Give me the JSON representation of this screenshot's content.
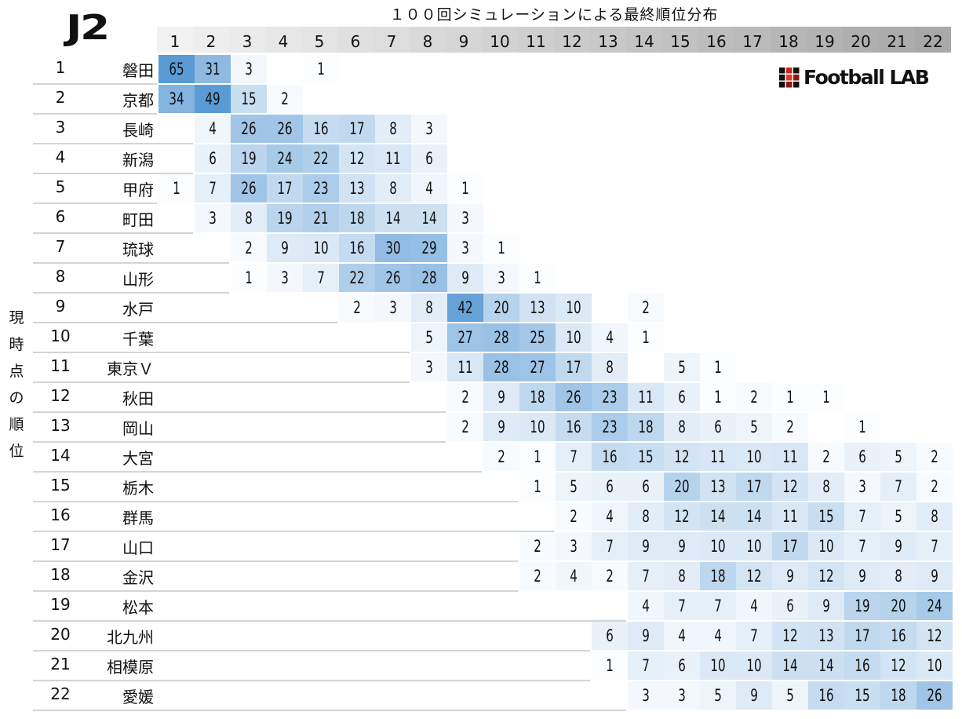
{
  "title": "１００回シミュレーションによる最終順位分布",
  "league_logo": "J2",
  "brand_logo": "Football LAB",
  "colors": {
    "high": "#5b9bd5",
    "low": "#ffffff",
    "logo_red": "#c8281e"
  },
  "chart_data": {
    "type": "heatmap",
    "title": "１００回シミュレーションによる最終順位分布",
    "ylabel": "現時点の順位",
    "x": [
      1,
      2,
      3,
      4,
      5,
      6,
      7,
      8,
      9,
      10,
      11,
      12,
      13,
      14,
      15,
      16,
      17,
      18,
      19,
      20,
      21,
      22
    ],
    "rows": [
      {
        "rank": 1,
        "team": "磐田",
        "values": {
          "1": 65,
          "2": 31,
          "3": 3,
          "5": 1
        }
      },
      {
        "rank": 2,
        "team": "京都",
        "values": {
          "1": 34,
          "2": 49,
          "3": 15,
          "4": 2
        }
      },
      {
        "rank": 3,
        "team": "長崎",
        "values": {
          "2": 4,
          "3": 26,
          "4": 26,
          "5": 16,
          "6": 17,
          "7": 8,
          "8": 3
        }
      },
      {
        "rank": 4,
        "team": "新潟",
        "values": {
          "2": 6,
          "3": 19,
          "4": 24,
          "5": 22,
          "6": 12,
          "7": 11,
          "8": 6
        }
      },
      {
        "rank": 5,
        "team": "甲府",
        "values": {
          "1": 1,
          "2": 7,
          "3": 26,
          "4": 17,
          "5": 23,
          "6": 13,
          "7": 8,
          "8": 4,
          "9": 1
        }
      },
      {
        "rank": 6,
        "team": "町田",
        "values": {
          "2": 3,
          "3": 8,
          "4": 19,
          "5": 21,
          "6": 18,
          "7": 14,
          "8": 14,
          "9": 3
        }
      },
      {
        "rank": 7,
        "team": "琉球",
        "values": {
          "3": 2,
          "4": 9,
          "5": 10,
          "6": 16,
          "7": 30,
          "8": 29,
          "9": 3,
          "10": 1
        }
      },
      {
        "rank": 8,
        "team": "山形",
        "values": {
          "3": 1,
          "4": 3,
          "5": 7,
          "6": 22,
          "7": 26,
          "8": 28,
          "9": 9,
          "10": 3,
          "11": 1
        }
      },
      {
        "rank": 9,
        "team": "水戸",
        "values": {
          "6": 2,
          "7": 3,
          "8": 8,
          "9": 42,
          "10": 20,
          "11": 13,
          "12": 10,
          "14": 2
        }
      },
      {
        "rank": 10,
        "team": "千葉",
        "values": {
          "8": 5,
          "9": 27,
          "10": 28,
          "11": 25,
          "12": 10,
          "13": 4,
          "14": 1
        }
      },
      {
        "rank": 11,
        "team": "東京Ｖ",
        "values": {
          "8": 3,
          "9": 11,
          "10": 28,
          "11": 27,
          "12": 17,
          "13": 8,
          "15": 5,
          "16": 1
        }
      },
      {
        "rank": 12,
        "team": "秋田",
        "values": {
          "9": 2,
          "10": 9,
          "11": 18,
          "12": 26,
          "13": 23,
          "14": 11,
          "15": 6,
          "16": 1,
          "17": 2,
          "18": 1,
          "19": 1
        }
      },
      {
        "rank": 13,
        "team": "岡山",
        "values": {
          "9": 2,
          "10": 9,
          "11": 10,
          "12": 16,
          "13": 23,
          "14": 18,
          "15": 8,
          "16": 6,
          "17": 5,
          "18": 2,
          "20": 1
        }
      },
      {
        "rank": 14,
        "team": "大宮",
        "values": {
          "10": 2,
          "11": 1,
          "12": 7,
          "13": 16,
          "14": 15,
          "15": 12,
          "16": 11,
          "17": 10,
          "18": 11,
          "19": 2,
          "20": 6,
          "21": 5,
          "22": 2
        }
      },
      {
        "rank": 15,
        "team": "栃木",
        "values": {
          "11": 1,
          "12": 5,
          "13": 6,
          "14": 6,
          "15": 20,
          "16": 13,
          "17": 17,
          "18": 12,
          "19": 8,
          "20": 3,
          "21": 7,
          "22": 2
        }
      },
      {
        "rank": 16,
        "team": "群馬",
        "values": {
          "12": 2,
          "13": 4,
          "14": 8,
          "15": 12,
          "16": 14,
          "17": 14,
          "18": 11,
          "19": 15,
          "20": 7,
          "21": 5,
          "22": 8
        }
      },
      {
        "rank": 17,
        "team": "山口",
        "values": {
          "11": 2,
          "12": 3,
          "13": 7,
          "14": 9,
          "15": 9,
          "16": 10,
          "17": 10,
          "18": 17,
          "19": 10,
          "20": 7,
          "21": 9,
          "22": 7
        }
      },
      {
        "rank": 18,
        "team": "金沢",
        "values": {
          "11": 2,
          "12": 4,
          "13": 2,
          "14": 7,
          "15": 8,
          "16": 18,
          "17": 12,
          "18": 9,
          "19": 12,
          "20": 9,
          "21": 8,
          "22": 9
        }
      },
      {
        "rank": 19,
        "team": "松本",
        "values": {
          "14": 4,
          "15": 7,
          "16": 7,
          "17": 4,
          "18": 6,
          "19": 9,
          "20": 19,
          "21": 20,
          "22": 24
        }
      },
      {
        "rank": 20,
        "team": "北九州",
        "values": {
          "13": 6,
          "14": 9,
          "15": 4,
          "16": 4,
          "17": 7,
          "18": 12,
          "19": 13,
          "20": 17,
          "21": 16,
          "22": 12
        }
      },
      {
        "rank": 21,
        "team": "相模原",
        "values": {
          "13": 1,
          "14": 7,
          "15": 6,
          "16": 10,
          "17": 10,
          "18": 14,
          "19": 14,
          "20": 16,
          "21": 12,
          "22": 10
        }
      },
      {
        "rank": 22,
        "team": "愛媛",
        "values": {
          "14": 3,
          "15": 3,
          "16": 5,
          "17": 9,
          "18": 5,
          "19": 16,
          "20": 15,
          "21": 18,
          "22": 26
        }
      }
    ]
  }
}
